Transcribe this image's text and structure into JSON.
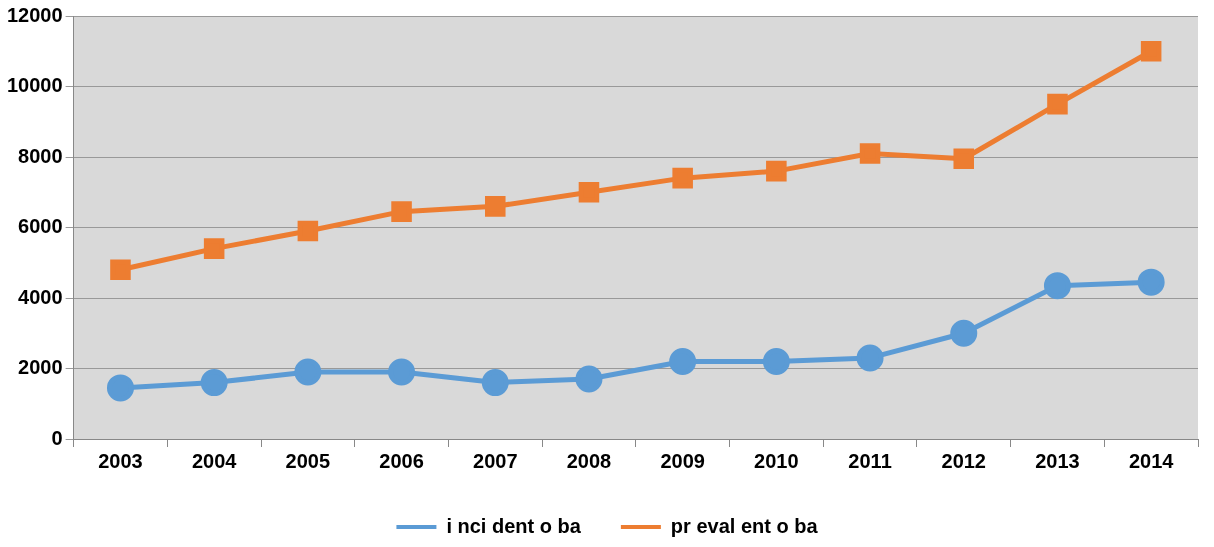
{
  "chart_data": {
    "type": "line",
    "categories": [
      "2003",
      "2004",
      "2005",
      "2006",
      "2007",
      "2008",
      "2009",
      "2010",
      "2011",
      "2012",
      "2013",
      "2014"
    ],
    "series": [
      {
        "name": "i nci dent o ba",
        "color": "#5b9bd5",
        "marker": "circle",
        "values": [
          1450,
          1600,
          1900,
          1900,
          1600,
          1700,
          2200,
          2200,
          2300,
          3000,
          4350,
          4450
        ]
      },
      {
        "name": "pr eval ent o ba",
        "color": "#ed7d31",
        "marker": "square",
        "values": [
          4800,
          5400,
          5900,
          6450,
          6600,
          7000,
          7400,
          7600,
          8100,
          7950,
          9500,
          11000
        ]
      }
    ],
    "ylim": [
      0,
      12000
    ],
    "yticks": [
      0,
      2000,
      4000,
      6000,
      8000,
      10000,
      12000
    ],
    "grid": "y",
    "legend": "bottom",
    "line_style": "solid"
  }
}
